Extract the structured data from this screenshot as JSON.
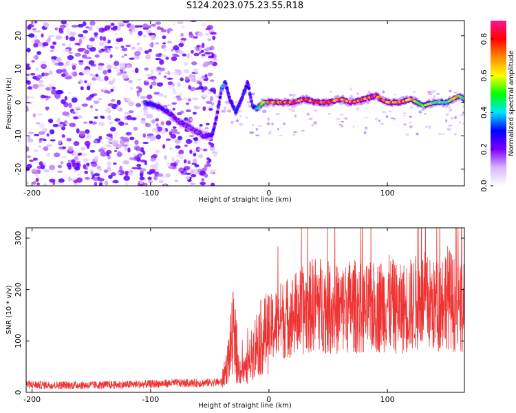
{
  "figure_title": "S124.2023.075.23.55.R18",
  "chart_data": [
    {
      "type": "heatmap",
      "title": "",
      "xlabel": "Height of straight line (km)",
      "ylabel": "Frequency (Hz)",
      "xlim": [
        -205,
        165
      ],
      "ylim": [
        -25,
        24.5
      ],
      "xticks": [
        -200,
        -100,
        0,
        100
      ],
      "yticks": [
        -20,
        -10,
        0,
        10,
        20
      ],
      "colorbar": {
        "label": "Normalized spectral amplitude",
        "range": [
          0.0,
          0.9
        ],
        "ticks": [
          0.0,
          0.2,
          0.4,
          0.6,
          0.8
        ],
        "colors": [
          "#ffffff",
          "#d7b6ff",
          "#7a00ff",
          "#0000ff",
          "#00e5ff",
          "#00ff00",
          "#ffff00",
          "#ff8c00",
          "#ff0000",
          "#ff1493"
        ]
      },
      "ridge_trace": {
        "description_x": [
          -105,
          -95,
          -85,
          -75,
          -65,
          -55,
          -48,
          -44,
          -40,
          -37,
          -33,
          -28,
          -22,
          -18,
          -14,
          -10,
          -5,
          0,
          10,
          20,
          30,
          40,
          50,
          60,
          70,
          80,
          90,
          100,
          110,
          120,
          130,
          140,
          150,
          160,
          165
        ],
        "frequency_hz": [
          0,
          -1,
          -3,
          -6,
          -8,
          -10,
          -10,
          -4,
          4,
          6,
          1,
          -3,
          2,
          6,
          -1,
          -2,
          0,
          0,
          0,
          0,
          1,
          0,
          0,
          1,
          0,
          1,
          2,
          0,
          0,
          1,
          -1,
          0,
          0,
          2,
          1
        ],
        "amplitude": [
          0.35,
          0.3,
          0.25,
          0.2,
          0.2,
          0.2,
          0.3,
          0.25,
          0.35,
          0.4,
          0.3,
          0.3,
          0.3,
          0.35,
          0.3,
          0.4,
          0.55,
          0.75,
          0.8,
          0.85,
          0.8,
          0.85,
          0.8,
          0.75,
          0.85,
          0.8,
          0.85,
          0.8,
          0.75,
          0.7,
          0.6,
          0.55,
          0.5,
          0.7,
          0.4
        ]
      },
      "noise_region_x": [
        -205,
        -45
      ],
      "noise_level": 0.12
    },
    {
      "type": "line",
      "title": "",
      "xlabel": "Height of straight line (km)",
      "ylabel": "SNR (10 * v/v)",
      "xlim": [
        -205,
        165
      ],
      "ylim": [
        0,
        320
      ],
      "xticks": [
        -200,
        -100,
        0,
        100
      ],
      "yticks": [
        0,
        100,
        200,
        300
      ],
      "color": "#ee3333",
      "series": [
        {
          "x": [
            -205,
            -180,
            -150,
            -120,
            -100,
            -80,
            -60,
            -40,
            -35,
            -30,
            -28,
            -25,
            -20,
            -15,
            -10,
            -5,
            0,
            10,
            20,
            30,
            40,
            50,
            60,
            70,
            80,
            90,
            100,
            110,
            120,
            130,
            140,
            150,
            160,
            165
          ],
          "values": [
            15,
            14,
            14,
            15,
            16,
            18,
            18,
            20,
            55,
            120,
            60,
            45,
            40,
            70,
            100,
            110,
            120,
            140,
            150,
            160,
            175,
            165,
            160,
            170,
            160,
            165,
            175,
            160,
            170,
            180,
            165,
            190,
            160,
            160
          ]
        }
      ]
    }
  ]
}
